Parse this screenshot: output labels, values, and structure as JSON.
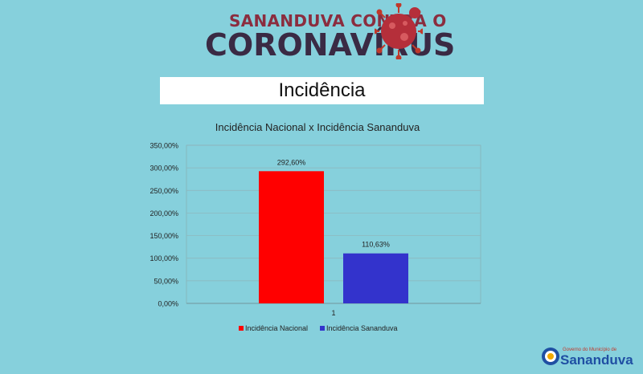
{
  "header": {
    "line1": "SANANDUVA CONTRA O",
    "line2": "CORONAVÍRUS"
  },
  "section_title": "Incidência",
  "chart_data": {
    "type": "bar",
    "title": "Incidência Nacional x Incidência Sananduva",
    "categories": [
      "1"
    ],
    "series": [
      {
        "name": "Incidência Nacional",
        "values": [
          292.6
        ],
        "label": "292,60%",
        "color": "#ff0000"
      },
      {
        "name": "Incidência Sananduva",
        "values": [
          110.63
        ],
        "label": "110,63%",
        "color": "#3333cc"
      }
    ],
    "ylim": [
      0,
      350
    ],
    "yticks": [
      "0,00%",
      "50,00%",
      "100,00%",
      "150,00%",
      "200,00%",
      "250,00%",
      "300,00%",
      "350,00%"
    ],
    "grid": true,
    "legend": "bottom"
  },
  "footer": {
    "line1": "Governo do Município de",
    "line2": "Sananduva"
  }
}
